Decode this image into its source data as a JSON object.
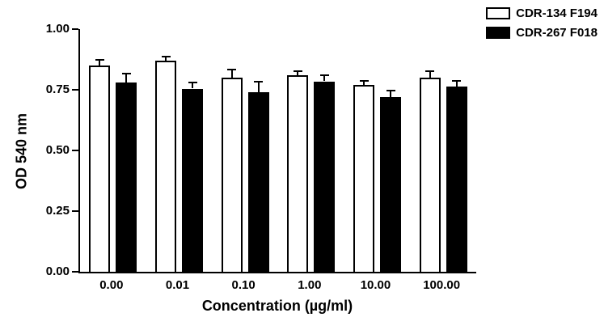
{
  "chart_data": {
    "type": "bar",
    "title": "",
    "xlabel": "Concentration (µg/ml)",
    "ylabel": "OD 540 nm",
    "ylim": [
      0.0,
      1.0
    ],
    "yticks": [
      0.0,
      0.25,
      0.5,
      0.75,
      1.0
    ],
    "ytick_labels": [
      "0.00",
      "0.25",
      "0.50",
      "0.75",
      "1.00"
    ],
    "categories": [
      "0.00",
      "0.01",
      "0.10",
      "1.00",
      "10.00",
      "100.00"
    ],
    "series": [
      {
        "name": "CDR-134 F194",
        "fill": "#ffffff",
        "stroke": "#000000",
        "values": [
          0.85,
          0.87,
          0.8,
          0.81,
          0.77,
          0.8
        ],
        "errors": [
          0.02,
          0.013,
          0.03,
          0.013,
          0.012,
          0.022
        ]
      },
      {
        "name": "CDR-267 F018",
        "fill": "#000000",
        "stroke": "#000000",
        "values": [
          0.78,
          0.755,
          0.74,
          0.785,
          0.72,
          0.765
        ],
        "errors": [
          0.032,
          0.022,
          0.04,
          0.022,
          0.025,
          0.02
        ]
      }
    ],
    "legend_position": "top-right",
    "grid": false,
    "background": "#ffffff",
    "axis_color": "#000000"
  }
}
